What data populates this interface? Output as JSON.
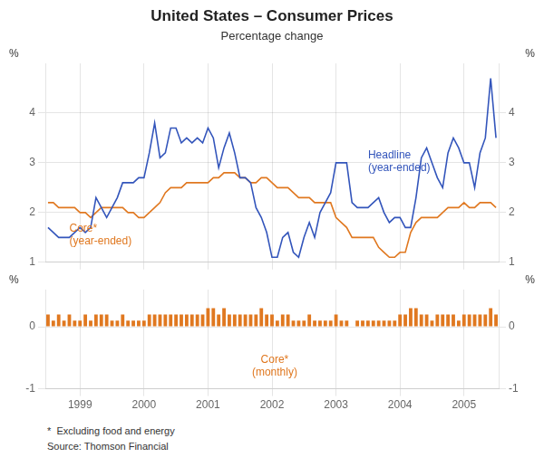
{
  "chart_data": [
    {
      "type": "line",
      "title": "United States – Consumer Prices",
      "subtitle": "Percentage change",
      "y_label": "%",
      "y2_label": "%",
      "categories": [
        null,
        null,
        null,
        null,
        null,
        null,
        "1999",
        null,
        null,
        null,
        null,
        null,
        null,
        null,
        null,
        null,
        null,
        null,
        "2000",
        null,
        null,
        null,
        null,
        null,
        null,
        null,
        null,
        null,
        null,
        null,
        "2001",
        null,
        null,
        null,
        null,
        null,
        null,
        null,
        null,
        null,
        null,
        null,
        "2002",
        null,
        null,
        null,
        null,
        null,
        null,
        null,
        null,
        null,
        null,
        null,
        "2003",
        null,
        null,
        null,
        null,
        null,
        null,
        null,
        null,
        null,
        null,
        null,
        "2004",
        null,
        null,
        null,
        null,
        null,
        null,
        null,
        null,
        null,
        null,
        null,
        "2005",
        null,
        null,
        null,
        null,
        null,
        null
      ],
      "series": [
        {
          "color": "#3355bb",
          "values": [
            1.7,
            1.6,
            1.5,
            1.5,
            1.5,
            1.6,
            1.7,
            1.6,
            1.7,
            2.3,
            2.1,
            1.9,
            2.1,
            2.3,
            2.6,
            2.6,
            2.6,
            2.7,
            2.7,
            3.2,
            3.8,
            3.1,
            3.2,
            3.7,
            3.7,
            3.4,
            3.5,
            3.4,
            3.5,
            3.4,
            3.7,
            3.5,
            2.9,
            3.3,
            3.6,
            3.2,
            2.7,
            2.7,
            2.6,
            2.1,
            1.9,
            1.6,
            1.1,
            1.1,
            1.5,
            1.6,
            1.2,
            1.1,
            1.5,
            1.8,
            1.5,
            2.0,
            2.2,
            2.4,
            3.0,
            3.0,
            3.0,
            2.2,
            2.1,
            2.1,
            2.1,
            2.2,
            2.3,
            2.0,
            1.8,
            1.9,
            1.9,
            1.7,
            1.7,
            2.3,
            3.1,
            3.3,
            3.0,
            2.7,
            2.5,
            3.2,
            3.5,
            3.3,
            3.0,
            3.0,
            2.5,
            3.2,
            3.5,
            4.7,
            3.5
          ]
        },
        {
          "color": "#e07820",
          "values": [
            2.2,
            2.2,
            2.1,
            2.1,
            2.1,
            2.1,
            2.0,
            2.0,
            1.9,
            2.0,
            2.1,
            2.1,
            2.1,
            2.1,
            2.1,
            2.0,
            2.0,
            1.9,
            1.9,
            2.0,
            2.1,
            2.2,
            2.4,
            2.5,
            2.5,
            2.5,
            2.6,
            2.6,
            2.6,
            2.6,
            2.6,
            2.7,
            2.7,
            2.8,
            2.8,
            2.8,
            2.7,
            2.7,
            2.6,
            2.6,
            2.7,
            2.7,
            2.6,
            2.5,
            2.5,
            2.5,
            2.4,
            2.3,
            2.3,
            2.3,
            2.2,
            2.2,
            2.2,
            2.2,
            1.9,
            1.8,
            1.7,
            1.5,
            1.5,
            1.5,
            1.5,
            1.5,
            1.3,
            1.2,
            1.1,
            1.1,
            1.2,
            1.2,
            1.6,
            1.8,
            1.9,
            1.9,
            1.9,
            1.9,
            2.0,
            2.1,
            2.1,
            2.1,
            2.2,
            2.1,
            2.1,
            2.2,
            2.2,
            2.2,
            2.1
          ]
        }
      ],
      "ylim": [
        1.0,
        5.0
      ],
      "yticks": [
        1,
        2,
        3,
        4
      ],
      "y2lim": [
        1.0,
        5.0
      ],
      "y2ticks": [
        1,
        2,
        3,
        4
      ],
      "grid": true,
      "tick_labels": "y",
      "annotations": [
        {
          "text": "Headline\n(year-ended)",
          "x": 60,
          "y": 3.25,
          "color": "#3355bb"
        },
        {
          "text": "Core*\n(year-ended)",
          "x": 4,
          "y": 1.78,
          "color": "#e07820"
        }
      ]
    },
    {
      "type": "bar",
      "y_label": "%",
      "y2_label": "%",
      "categories": [
        null,
        null,
        null,
        null,
        null,
        null,
        "1999",
        null,
        null,
        null,
        null,
        null,
        null,
        null,
        null,
        null,
        null,
        null,
        "2000",
        null,
        null,
        null,
        null,
        null,
        null,
        null,
        null,
        null,
        null,
        null,
        "2001",
        null,
        null,
        null,
        null,
        null,
        null,
        null,
        null,
        null,
        null,
        null,
        "2002",
        null,
        null,
        null,
        null,
        null,
        null,
        null,
        null,
        null,
        null,
        null,
        "2003",
        null,
        null,
        null,
        null,
        null,
        null,
        null,
        null,
        null,
        null,
        null,
        "2004",
        null,
        null,
        null,
        null,
        null,
        null,
        null,
        null,
        null,
        null,
        null,
        "2005",
        null,
        null,
        null,
        null,
        null,
        null
      ],
      "series": [
        {
          "color": "#e07820",
          "values": [
            0.2,
            0.1,
            0.2,
            0.1,
            0.2,
            0.1,
            0.1,
            0.2,
            0.1,
            0.2,
            0.2,
            0.2,
            0.1,
            0.1,
            0.2,
            0.1,
            0.1,
            0.1,
            0.1,
            0.2,
            0.2,
            0.2,
            0.2,
            0.2,
            0.2,
            0.2,
            0.2,
            0.2,
            0.2,
            0.2,
            0.3,
            0.3,
            0.2,
            0.3,
            0.2,
            0.2,
            0.2,
            0.2,
            0.2,
            0.2,
            0.3,
            0.2,
            0.2,
            0.1,
            0.2,
            0.2,
            0.1,
            0.1,
            0.1,
            0.2,
            0.1,
            0.1,
            0.1,
            0.1,
            0.2,
            0.1,
            0.1,
            0.0,
            0.1,
            0.1,
            0.1,
            0.1,
            0.1,
            0.1,
            0.1,
            0.1,
            0.2,
            0.2,
            0.3,
            0.3,
            0.2,
            0.2,
            0.1,
            0.2,
            0.2,
            0.2,
            0.2,
            0.1,
            0.2,
            0.2,
            0.2,
            0.2,
            0.2,
            0.3,
            0.2
          ]
        }
      ],
      "ylim": [
        -1.0,
        0.6
      ],
      "yticks": [
        -1,
        0
      ],
      "y2lim": [
        -1.0,
        0.6
      ],
      "y2ticks": [
        -1,
        0
      ],
      "grid": true,
      "annotations": [
        {
          "text": "Core*\n(monthly)",
          "x": 42.5,
          "y": -0.45,
          "color": "#e07820"
        }
      ],
      "footnotes": [
        "*  Excluding food and energy",
        "Source: Thomson Financial"
      ]
    }
  ]
}
